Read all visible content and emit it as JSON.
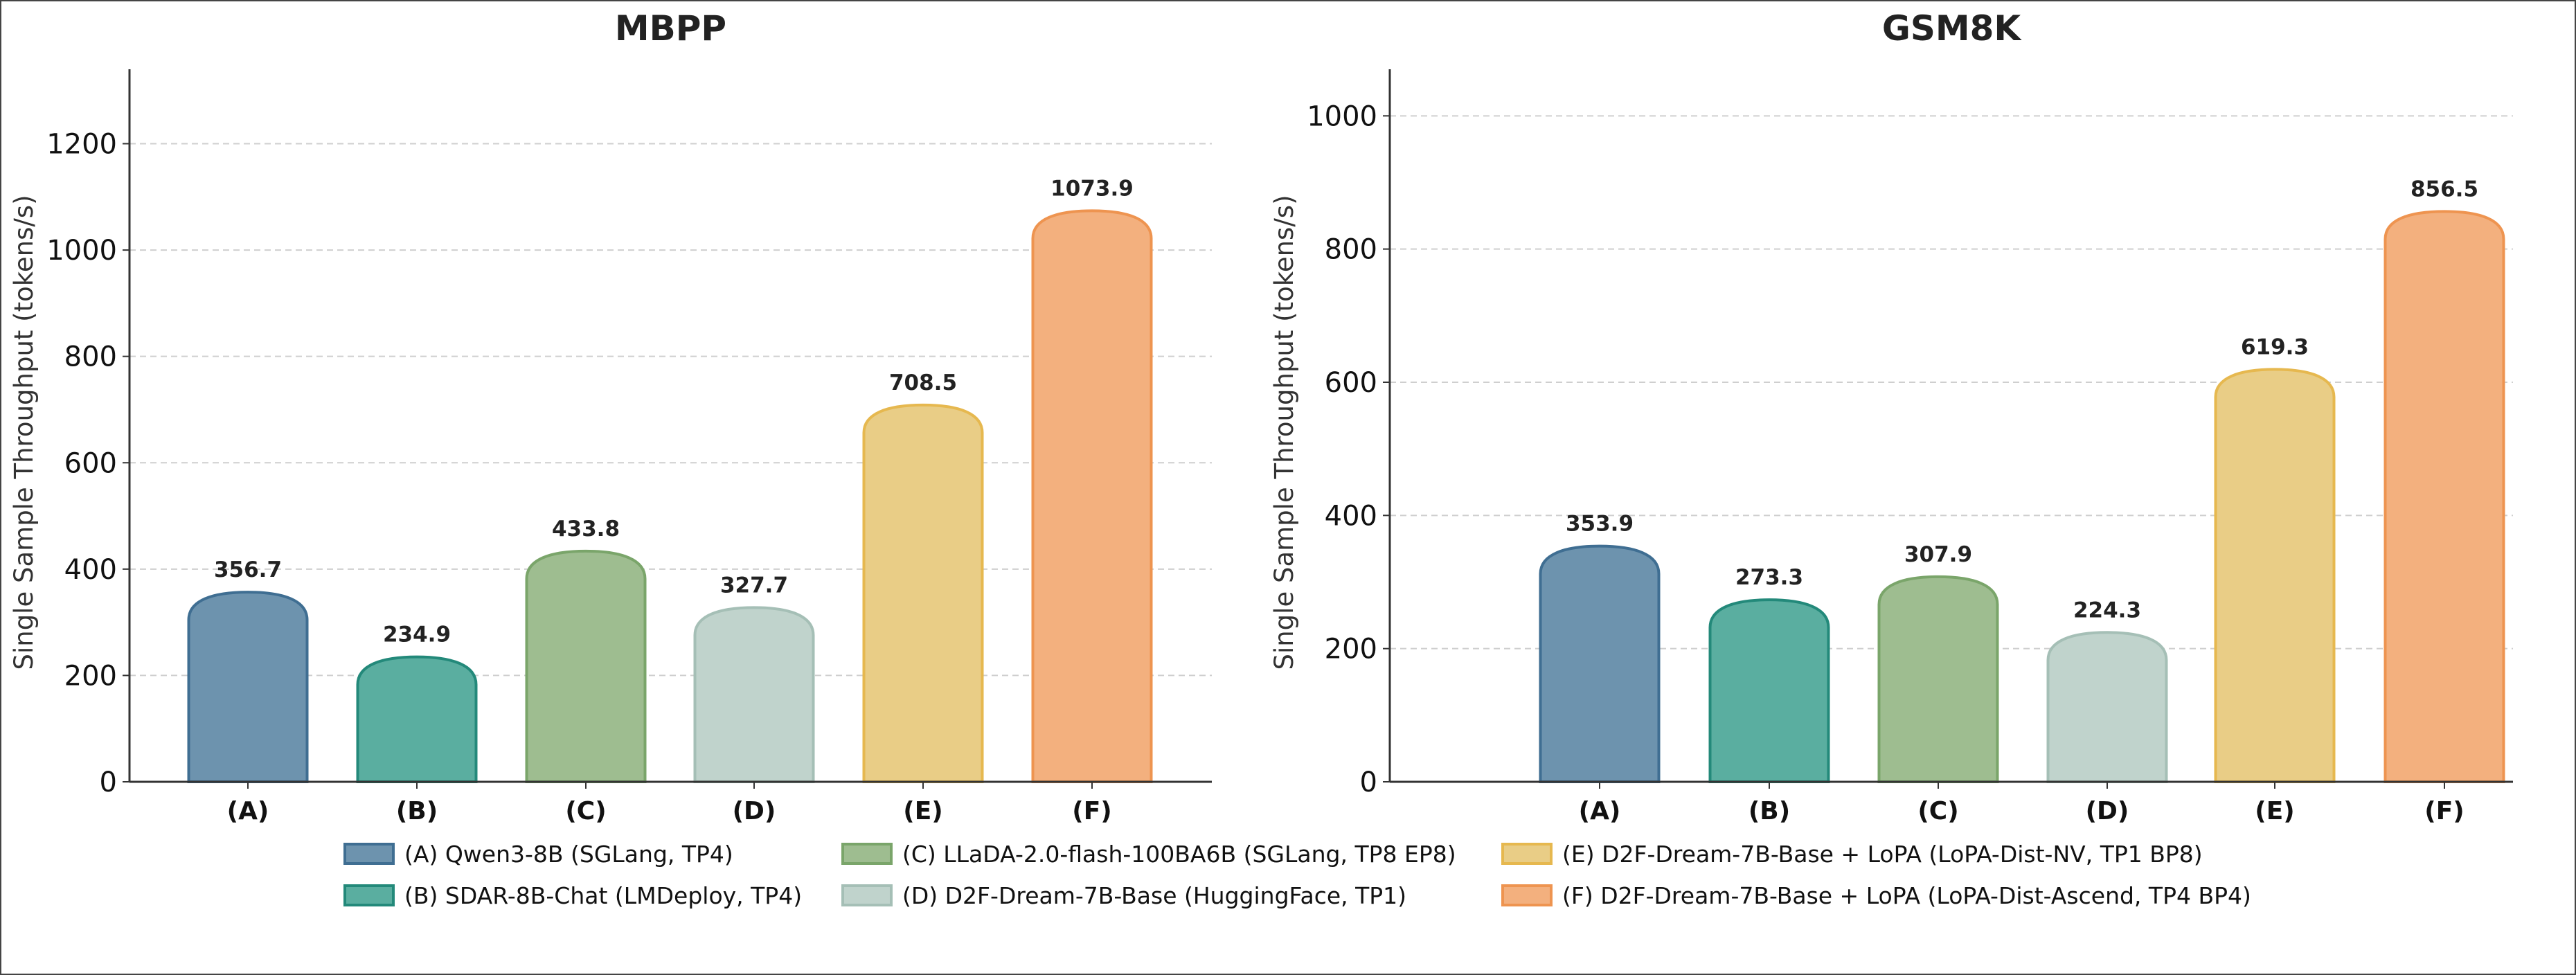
{
  "chart_data": [
    {
      "type": "bar",
      "title": "MBPP",
      "ylabel": "Single Sample Throughput (tokens/s)",
      "categories": [
        "(A)",
        "(B)",
        "(C)",
        "(D)",
        "(E)",
        "(F)"
      ],
      "values": [
        356.7,
        234.9,
        433.8,
        327.7,
        708.5,
        1073.9
      ],
      "value_labels": [
        "356.7",
        "234.9",
        "433.8",
        "327.7",
        "708.5",
        "1073.9"
      ],
      "ylim": [
        0,
        1340
      ],
      "yticks": [
        "0",
        "200",
        "400",
        "600",
        "800",
        "1000",
        "1200"
      ],
      "grid": "horizontal dashed"
    },
    {
      "type": "bar",
      "title": "GSM8K",
      "ylabel": "Single Sample Throughput (tokens/s)",
      "categories": [
        "(A)",
        "(B)",
        "(C)",
        "(D)",
        "(E)",
        "(F)"
      ],
      "values": [
        353.9,
        273.3,
        307.9,
        224.3,
        619.3,
        856.5
      ],
      "value_labels": [
        "353.9",
        "273.3",
        "307.9",
        "224.3",
        "619.3",
        "856.5"
      ],
      "ylim": [
        0,
        1070
      ],
      "yticks": [
        "0",
        "200",
        "400",
        "600",
        "800",
        "1000"
      ],
      "grid": "horizontal dashed"
    }
  ],
  "legend": {
    "placement": "bottom",
    "items": [
      {
        "label": "(A) Qwen3-8B (SGLang, TP4)",
        "fill": "#6d93ae",
        "stroke": "#3f6e92"
      },
      {
        "label": "(B) SDAR-8B-Chat (LMDeploy, TP4)",
        "fill": "#5aaea0",
        "stroke": "#23897a"
      },
      {
        "label": "(C) LLaDA-2.0-flash-100BA6B (SGLang, TP8 EP8)",
        "fill": "#9ebd90",
        "stroke": "#7aa56a"
      },
      {
        "label": "(D) D2F-Dream-7B-Base (HuggingFace, TP1)",
        "fill": "#c0d3cc",
        "stroke": "#a5bfb6"
      },
      {
        "label": "(E) D2F-Dream-7B-Base + LoPA (LoPA-Dist-NV, TP1 BP8)",
        "fill": "#e9cd86",
        "stroke": "#e6b84f"
      },
      {
        "label": "(F) D2F-Dream-7B-Base + LoPA (LoPA-Dist-Ascend, TP4 BP4)",
        "fill": "#f3b07e",
        "stroke": "#ee9450"
      }
    ]
  }
}
